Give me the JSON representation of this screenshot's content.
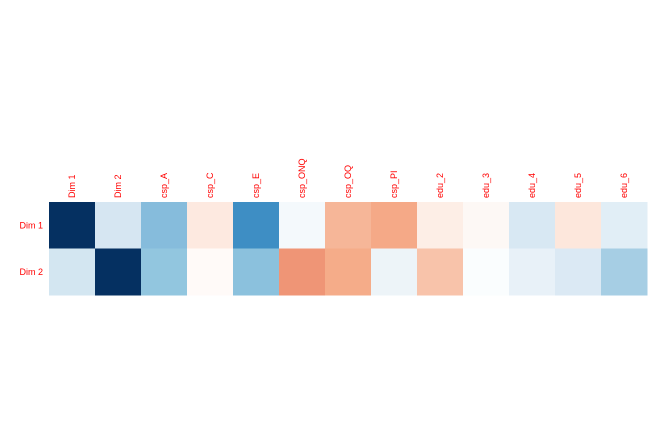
{
  "chart_data": {
    "type": "heatmap",
    "title": "",
    "xlabel": "",
    "ylabel": "",
    "label_color": "#ff0000",
    "columns": [
      "Dim 1",
      "Dim 2",
      "csp_A",
      "csp_C",
      "csp_E",
      "csp_ONQ",
      "csp_OQ",
      "csp_PI",
      "edu_2",
      "edu_3",
      "edu_4",
      "edu_5",
      "edu_6"
    ],
    "rows": [
      {
        "label": "Dim 1",
        "colors": [
          "#053061",
          "#d6e6f2",
          "#86bcdc",
          "#fde9e0",
          "#3e8ec4",
          "#f4f9fc",
          "#f6b698",
          "#f5a987",
          "#fdeee6",
          "#fdf8f5",
          "#d8e8f3",
          "#fde7dc",
          "#e1eef6"
        ]
      },
      {
        "label": "Dim 2",
        "colors": [
          "#d3e6f1",
          "#053061",
          "#92c6df",
          "#fffaf8",
          "#8bc1dd",
          "#ef9576",
          "#f5ac89",
          "#edf4f8",
          "#f8c3aa",
          "#fafdfe",
          "#e8f1f8",
          "#dbe9f4",
          "#a6cee4"
        ]
      }
    ]
  }
}
